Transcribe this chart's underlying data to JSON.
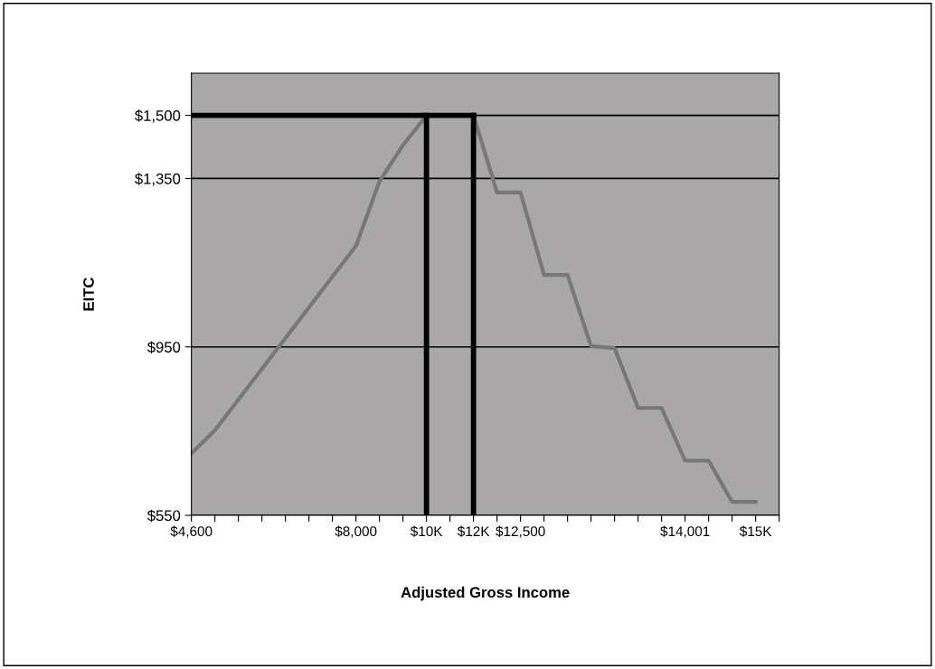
{
  "chart_data": {
    "type": "line",
    "xlabel": "Adjusted Gross Income",
    "ylabel": "EITC",
    "categories": [
      "$4,600",
      null,
      null,
      null,
      null,
      null,
      null,
      "$8,000",
      null,
      null,
      "$10K",
      null,
      "$12K",
      null,
      "$12,500",
      null,
      null,
      null,
      null,
      null,
      null,
      "$14,001",
      null,
      null,
      "$15K",
      null
    ],
    "series": [
      {
        "color": "#777777",
        "values": [
          697,
          752,
          825,
          898,
          971,
          1044,
          1117,
          1190,
          1343,
          1429,
          1500,
          1500,
          1500,
          1317,
          1317,
          1121,
          1121,
          952,
          947,
          805,
          805,
          680,
          680,
          582,
          582,
          null
        ]
      },
      {
        "type": "line",
        "color": "#000000",
        "x": [
          "$4,600",
          "$12K"
        ],
        "values": [
          1500,
          1500
        ]
      },
      {
        "type": "line",
        "color": "#000000",
        "x": [
          "$10K",
          "$10K"
        ],
        "values": [
          550,
          1500
        ]
      },
      {
        "type": "line",
        "color": "#000000",
        "x": [
          "$12K",
          "$12K"
        ],
        "values": [
          550,
          1500
        ]
      }
    ],
    "ylim": [
      550,
      1600
    ],
    "yticks": [
      {
        "value": 550,
        "label": "$550"
      },
      {
        "value": 950,
        "label": "$950"
      },
      {
        "value": 1350,
        "label": "$1,350"
      },
      {
        "value": 1500,
        "label": "$1,500"
      }
    ],
    "grid": "y",
    "legend": false,
    "marker": "none",
    "line_style": "solid"
  }
}
